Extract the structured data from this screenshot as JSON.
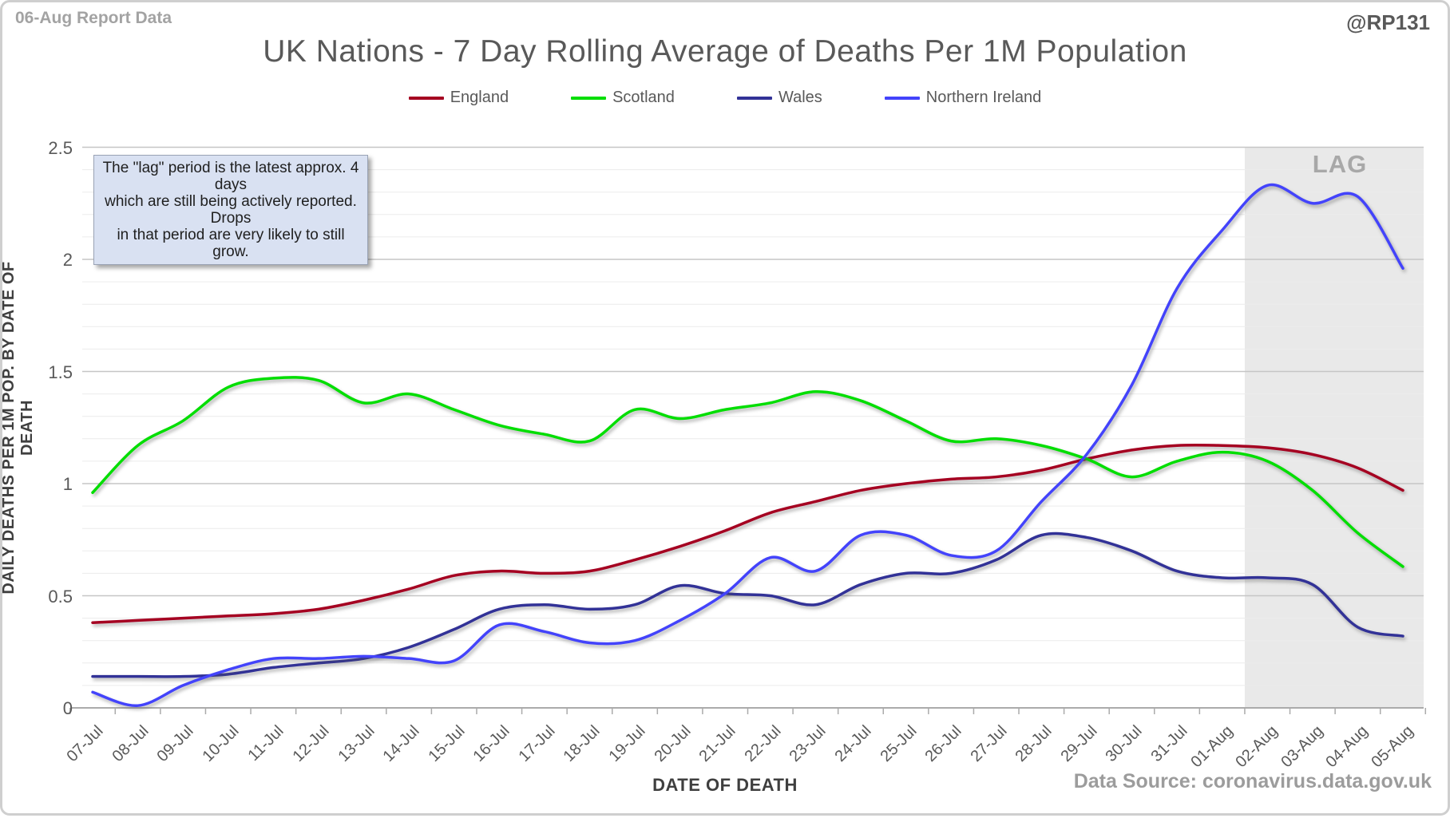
{
  "header": {
    "report_label": "06-Aug Report Data",
    "watermark": "@RP131",
    "title": "UK Nations - 7 Day Rolling Average of Deaths Per 1M Population"
  },
  "annotation": {
    "line1": "The \"lag\" period is the latest approx. 4 days",
    "line2": "which are still being actively reported. Drops",
    "line3": "in that period are very likely to still grow."
  },
  "footer": {
    "source": "Data Source: coronavirus.data.gov.uk"
  },
  "chart_data": {
    "type": "line",
    "title": "UK Nations - 7 Day Rolling Average of Deaths Per 1M Population",
    "xlabel": "DATE OF DEATH",
    "ylabel": "DAILY DEATHS PER 1M POP. BY DATE OF DEATH",
    "ylim": [
      0,
      2.5
    ],
    "ytick_labels": [
      "0",
      "0.5",
      "1",
      "1.5",
      "2",
      "2.5"
    ],
    "ytick_step": 0.5,
    "minor_ytick_step": 0.1,
    "grid": "horizontal",
    "legend_position": "top",
    "categories": [
      "07-Jul",
      "08-Jul",
      "09-Jul",
      "10-Jul",
      "11-Jul",
      "12-Jul",
      "13-Jul",
      "14-Jul",
      "15-Jul",
      "16-Jul",
      "17-Jul",
      "18-Jul",
      "19-Jul",
      "20-Jul",
      "21-Jul",
      "22-Jul",
      "23-Jul",
      "24-Jul",
      "25-Jul",
      "26-Jul",
      "27-Jul",
      "28-Jul",
      "29-Jul",
      "30-Jul",
      "31-Jul",
      "01-Aug",
      "02-Aug",
      "03-Aug",
      "04-Aug",
      "05-Aug"
    ],
    "series": [
      {
        "name": "England",
        "color": "#a50021",
        "values": [
          0.38,
          0.39,
          0.4,
          0.41,
          0.42,
          0.44,
          0.48,
          0.53,
          0.59,
          0.61,
          0.6,
          0.61,
          0.66,
          0.72,
          0.79,
          0.87,
          0.92,
          0.97,
          1.0,
          1.02,
          1.03,
          1.06,
          1.11,
          1.15,
          1.17,
          1.17,
          1.16,
          1.13,
          1.07,
          0.97
        ]
      },
      {
        "name": "Scotland",
        "color": "#00de00",
        "values": [
          0.96,
          1.17,
          1.28,
          1.43,
          1.47,
          1.46,
          1.36,
          1.4,
          1.33,
          1.26,
          1.22,
          1.19,
          1.33,
          1.29,
          1.33,
          1.36,
          1.41,
          1.37,
          1.28,
          1.19,
          1.2,
          1.17,
          1.11,
          1.03,
          1.1,
          1.14,
          1.1,
          0.97,
          0.78,
          0.63
        ]
      },
      {
        "name": "Wales",
        "color": "#323297",
        "values": [
          0.14,
          0.14,
          0.14,
          0.15,
          0.18,
          0.2,
          0.22,
          0.27,
          0.35,
          0.44,
          0.46,
          0.44,
          0.46,
          0.545,
          0.51,
          0.5,
          0.46,
          0.55,
          0.6,
          0.6,
          0.66,
          0.77,
          0.76,
          0.7,
          0.61,
          0.58,
          0.58,
          0.55,
          0.36,
          0.32
        ]
      },
      {
        "name": "Northern Ireland",
        "color": "#4343fb",
        "values": [
          0.07,
          0.01,
          0.1,
          0.17,
          0.22,
          0.22,
          0.23,
          0.22,
          0.21,
          0.37,
          0.34,
          0.29,
          0.3,
          0.39,
          0.51,
          0.67,
          0.61,
          0.77,
          0.77,
          0.68,
          0.7,
          0.92,
          1.13,
          1.44,
          1.87,
          2.13,
          2.33,
          2.25,
          2.28,
          1.96
        ]
      }
    ],
    "lag_band": {
      "label": "LAG",
      "starts_after_category": "01-Aug",
      "color": "#e9e9e9"
    }
  }
}
